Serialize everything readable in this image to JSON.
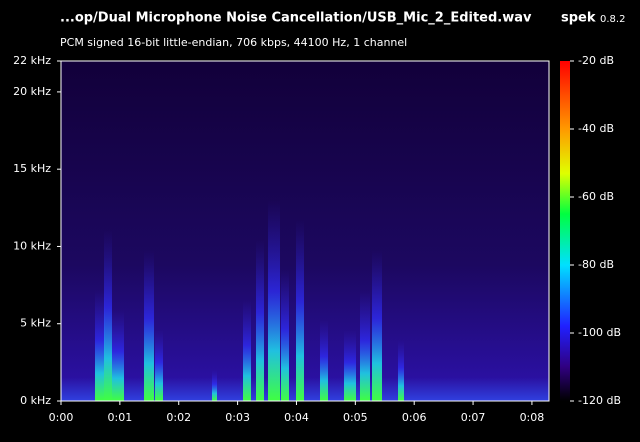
{
  "chart_data": {
    "type": "spectrogram",
    "title": "...op/Dual Microphone Noise Cancellation/USB_Mic_2_Edited.wav",
    "app_name": "spek",
    "app_version": "0.8.2",
    "subtitle": "PCM signed 16-bit little-endian, 706 kbps, 44100 Hz, 1 channel",
    "xlim": [
      0,
      8.29
    ],
    "xticks": [
      {
        "value": 0,
        "label": "0:00"
      },
      {
        "value": 1,
        "label": "0:01"
      },
      {
        "value": 2,
        "label": "0:02"
      },
      {
        "value": 3,
        "label": "0:03"
      },
      {
        "value": 4,
        "label": "0:04"
      },
      {
        "value": 5,
        "label": "0:05"
      },
      {
        "value": 6,
        "label": "0:06"
      },
      {
        "value": 7,
        "label": "0:07"
      },
      {
        "value": 8,
        "label": "0:08"
      }
    ],
    "ylim": [
      0,
      22
    ],
    "yticks": [
      {
        "value": 0,
        "label": "0 kHz"
      },
      {
        "value": 5,
        "label": "5 kHz"
      },
      {
        "value": 10,
        "label": "10 kHz"
      },
      {
        "value": 15,
        "label": "15 kHz"
      },
      {
        "value": 20,
        "label": "20 kHz"
      },
      {
        "value": 22,
        "label": "22 kHz"
      }
    ],
    "zlim": [
      -120,
      -20
    ],
    "zticks": [
      {
        "value": -20,
        "label": "-20 dB"
      },
      {
        "value": -40,
        "label": "-40 dB"
      },
      {
        "value": -60,
        "label": "-60 dB"
      },
      {
        "value": -80,
        "label": "-80 dB"
      },
      {
        "value": -100,
        "label": "-100 dB"
      },
      {
        "value": -120,
        "label": "-120 dB"
      }
    ]
  }
}
